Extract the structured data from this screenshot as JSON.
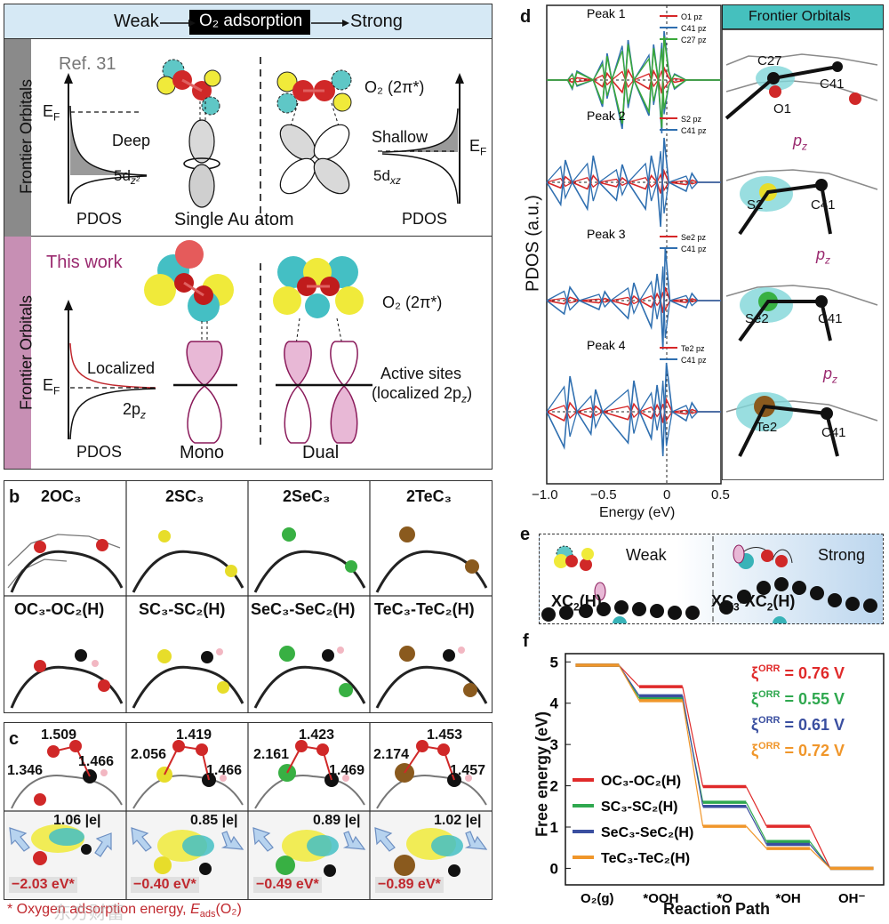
{
  "panel_a": {
    "letter": "a",
    "header_left": "Weak",
    "header_mid": "O₂ adsorption",
    "header_right": "Strong",
    "side_label_top": "Frontier Orbitals",
    "side_label_bottom": "Frontier Orbitals",
    "ref": "Ref. 31",
    "ef": "E",
    "ef_sub": "F",
    "deep": "Deep",
    "shallow": "Shallow",
    "dz2": "5d",
    "dz2_sub": "z²",
    "dxz": "5d",
    "dxz_sub": "xz",
    "pdos": "PDOS",
    "single_au": "Single Au atom",
    "o2_pi": "O₂ (2π*)",
    "this_work": "This work",
    "localized": "Localized",
    "two_pz": "2p",
    "two_pz_sub": "z",
    "mono": "Mono",
    "dual": "Dual",
    "active_sites_1": "Active sites",
    "active_sites_2": "(localized 2p",
    "active_sites_3": ")"
  },
  "panel_b": {
    "letter": "b",
    "top": [
      "2OC₃",
      "2SC₃",
      "2SeC₃",
      "2TeC₃"
    ],
    "bottom": [
      "OC₃-OC₂(H)",
      "SC₃-SC₂(H)",
      "SeC₃-SeC₂(H)",
      "TeC₃-TeC₂(H)"
    ]
  },
  "panel_c": {
    "letter": "c",
    "structures": [
      {
        "bonds": [
          "1.509",
          "1.346",
          "1.466"
        ],
        "charge": "1.06 |e|",
        "energy": "−2.03 eV*"
      },
      {
        "bonds": [
          "1.419",
          "2.056",
          "1.466"
        ],
        "charge": "0.85 |e|",
        "energy": "−0.40 eV*"
      },
      {
        "bonds": [
          "1.423",
          "2.161",
          "1.469"
        ],
        "charge": "0.89 |e|",
        "energy": "−0.49 eV*"
      },
      {
        "bonds": [
          "1.453",
          "2.174",
          "1.457"
        ],
        "charge": "1.02 |e|",
        "energy": "−0.89 eV*"
      }
    ],
    "footnote_star": "*",
    "footnote": " Oxygen adsorption energy, ",
    "footnote_e": "E",
    "footnote_sub": "ads",
    "footnote_end": "(O₂)"
  },
  "panel_d": {
    "letter": "d",
    "ylabel": "PDOS (a.u.)",
    "xlabel": "Energy (eV)",
    "xticks": [
      "−1.0",
      "−0.5",
      "0",
      "0.5"
    ],
    "frontier": "Frontier Orbitals",
    "pz": "p",
    "pz_sub": "z",
    "atom_labels": [
      [
        "C27",
        "C41",
        "O1"
      ],
      [
        "S2",
        "C41"
      ],
      [
        "Se2",
        "C41"
      ],
      [
        "Te2",
        "C41"
      ]
    ]
  },
  "panel_e": {
    "letter": "e",
    "weak": "Weak",
    "strong": "Strong",
    "xc2h": "XC",
    "xc2h_sub": "2",
    "xc2h_end": "(H)",
    "xc3": "XC",
    "xc3_sub": "3",
    "xc3_mid": "-XC",
    "xc3_sub2": "2",
    "xc3_end": "(H)"
  },
  "chart_data": [
    {
      "type": "line",
      "panel": "d",
      "xlabel": "Energy (eV)",
      "ylabel": "PDOS (a.u.)",
      "xlim": [
        -1.0,
        0.5
      ],
      "subplots": [
        {
          "title": "Peak 1",
          "series": [
            {
              "name": "O1 pz",
              "color": "#d62728"
            },
            {
              "name": "C41 pz",
              "color": "#2f6fb0"
            },
            {
              "name": "C27 pz",
              "color": "#3aa83a"
            }
          ]
        },
        {
          "title": "Peak 2",
          "series": [
            {
              "name": "S2 pz",
              "color": "#d62728"
            },
            {
              "name": "C41 pz",
              "color": "#2f6fb0"
            }
          ]
        },
        {
          "title": "Peak 3",
          "series": [
            {
              "name": "Se2 pz",
              "color": "#d62728"
            },
            {
              "name": "C41 pz",
              "color": "#2f6fb0"
            }
          ]
        },
        {
          "title": "Peak 4",
          "series": [
            {
              "name": "Te2 pz",
              "color": "#d62728"
            },
            {
              "name": "C41 pz",
              "color": "#2f6fb0"
            }
          ]
        }
      ]
    },
    {
      "type": "line",
      "panel": "f",
      "xlabel": "Reaction Path",
      "ylabel": "Free energy (eV)",
      "categories": [
        "O₂(g)",
        "*OOH",
        "*O",
        "*OH",
        "OH⁻"
      ],
      "ylim": [
        -0.4,
        5.2
      ],
      "yticks": [
        "0",
        "1",
        "2",
        "3",
        "4",
        "5"
      ],
      "series": [
        {
          "name": "OC₃-OC₂(H)",
          "color": "#e02a2a",
          "values": [
            4.92,
            4.4,
            1.98,
            1.02,
            0.0
          ],
          "xi": "= 0.76 V"
        },
        {
          "name": "SC₃-SC₂(H)",
          "color": "#2fa84f",
          "values": [
            4.92,
            4.12,
            1.6,
            0.65,
            0.0
          ],
          "xi": "= 0.55 V"
        },
        {
          "name": "SeC₃-SeC₂(H)",
          "color": "#3a4fa0",
          "values": [
            4.92,
            4.18,
            1.5,
            0.58,
            0.0
          ],
          "xi": "= 0.61 V"
        },
        {
          "name": "TeC₃-TeC₂(H)",
          "color": "#f0962a",
          "values": [
            4.92,
            4.06,
            1.02,
            0.48,
            0.0
          ],
          "xi": "= 0.72 V"
        }
      ],
      "xi_label": "ξ",
      "xi_sup": "ORR"
    }
  ],
  "colors": {
    "header_bg": "#d6e9f5",
    "side_gray": "#8a8a8a",
    "side_pink": "#c78fb4",
    "purple_text": "#9a2a6f",
    "red_text": "#c0282e"
  },
  "watermark": "东方财富"
}
